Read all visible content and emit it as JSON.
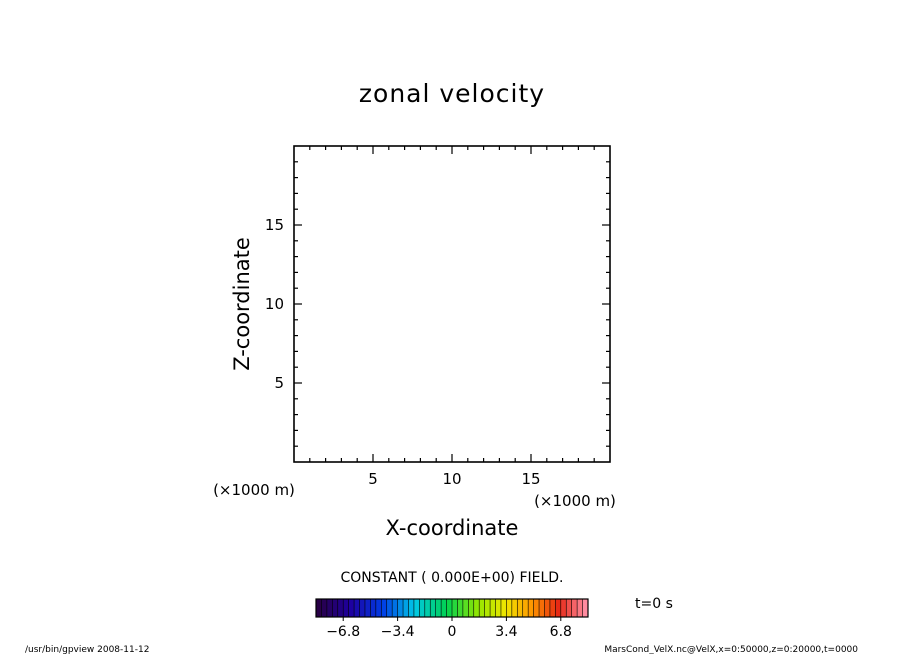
{
  "chart_data": {
    "type": "heatmap",
    "title": "zonal velocity",
    "xlabel": "X-coordinate",
    "ylabel": "Z-coordinate",
    "x_unit": "(×1000 m)",
    "y_unit": "(×1000 m)",
    "xlim": [
      0,
      20
    ],
    "ylim": [
      0,
      20
    ],
    "x_ticks": [
      5,
      10,
      15
    ],
    "y_ticks": [
      5,
      10,
      15
    ],
    "x_tick_labels": [
      "5",
      "10",
      "15"
    ],
    "y_tick_labels": [
      "5",
      "10",
      "15"
    ],
    "field_message": "CONSTANT ( 0.000E+00) FIELD.",
    "field_value": 0,
    "time_label": "t=0 s",
    "colorbar": {
      "min": -8.5,
      "max": 8.5,
      "num_levels": 50,
      "tick_values": [
        -6.8,
        -3.4,
        0,
        3.4,
        6.8
      ],
      "tick_labels": [
        "−6.8",
        "−3.4",
        "0",
        "3.4",
        "6.8"
      ],
      "colormap": "rainbow"
    },
    "footer_left": "/usr/bin/gpview   2008-11-12",
    "footer_right": "MarsCond_VelX.nc@VelX,x=0:50000,z=0:20000,t=0000"
  }
}
